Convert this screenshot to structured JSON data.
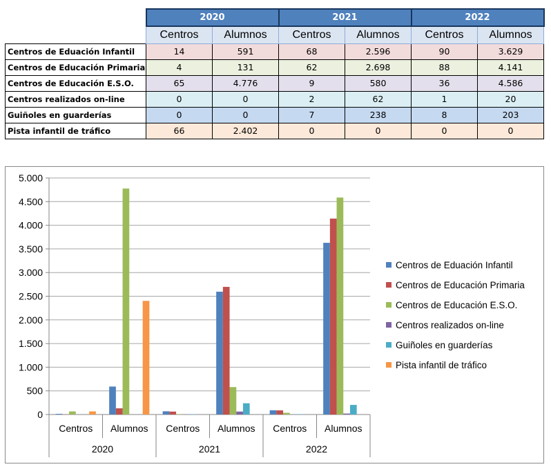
{
  "table": {
    "years": [
      "2020",
      "2021",
      "2022"
    ],
    "sub_headers": [
      "Centros",
      "Alumnos",
      "Centros",
      "Alumnos",
      "Centros",
      "Alumnos"
    ],
    "rows": [
      {
        "label": "Centros de Eduación Infantil",
        "cells": [
          "14",
          "591",
          "68",
          "2.596",
          "90",
          "3.629"
        ]
      },
      {
        "label": "Centros de Educación Primaria",
        "cells": [
          "4",
          "131",
          "62",
          "2.698",
          "88",
          "4.141"
        ]
      },
      {
        "label": "Centros de Educación E.S.O.",
        "cells": [
          "65",
          "4.776",
          "9",
          "580",
          "36",
          "4.586"
        ]
      },
      {
        "label": "Centros realizados on-line",
        "cells": [
          "0",
          "0",
          "2",
          "62",
          "1",
          "20"
        ]
      },
      {
        "label": "Guiñoles en guarderías",
        "cells": [
          "0",
          "0",
          "7",
          "238",
          "8",
          "203"
        ]
      },
      {
        "label": "Pista infantil de tráfico",
        "cells": [
          "66",
          "2.402",
          "0",
          "0",
          "0",
          "0"
        ]
      }
    ]
  },
  "chart_data": {
    "type": "bar",
    "categories": [
      "Centros",
      "Alumnos",
      "Centros",
      "Alumnos",
      "Centros",
      "Alumnos"
    ],
    "category_groups": [
      "2020",
      "2021",
      "2022"
    ],
    "series": [
      {
        "name": "Centros de Eduación Infantil",
        "color": "#4f81bd",
        "values": [
          14,
          591,
          68,
          2596,
          90,
          3629
        ]
      },
      {
        "name": "Centros de Educación Primaria",
        "color": "#c0504d",
        "values": [
          4,
          131,
          62,
          2698,
          88,
          4141
        ]
      },
      {
        "name": "Centros de Educación E.S.O.",
        "color": "#9bbb59",
        "values": [
          65,
          4776,
          9,
          580,
          36,
          4586
        ]
      },
      {
        "name": "Centros realizados on-line",
        "color": "#8064a2",
        "values": [
          0,
          0,
          2,
          62,
          1,
          20
        ]
      },
      {
        "name": "Guiñoles en guarderías",
        "color": "#4bacc6",
        "values": [
          0,
          0,
          7,
          238,
          8,
          203
        ]
      },
      {
        "name": "Pista infantil de tráfico",
        "color": "#f79646",
        "values": [
          66,
          2402,
          0,
          0,
          0,
          0
        ]
      }
    ],
    "ylim": [
      0,
      5000
    ],
    "y_ticks": [
      0,
      500,
      1000,
      1500,
      2000,
      2500,
      3000,
      3500,
      4000,
      4500,
      5000
    ],
    "y_tick_labels": [
      "0",
      "500",
      "1.000",
      "1.500",
      "2.000",
      "2.500",
      "3.000",
      "3.500",
      "4.000",
      "4.500",
      "5.000"
    ],
    "grid": true,
    "legend_position": "right"
  }
}
